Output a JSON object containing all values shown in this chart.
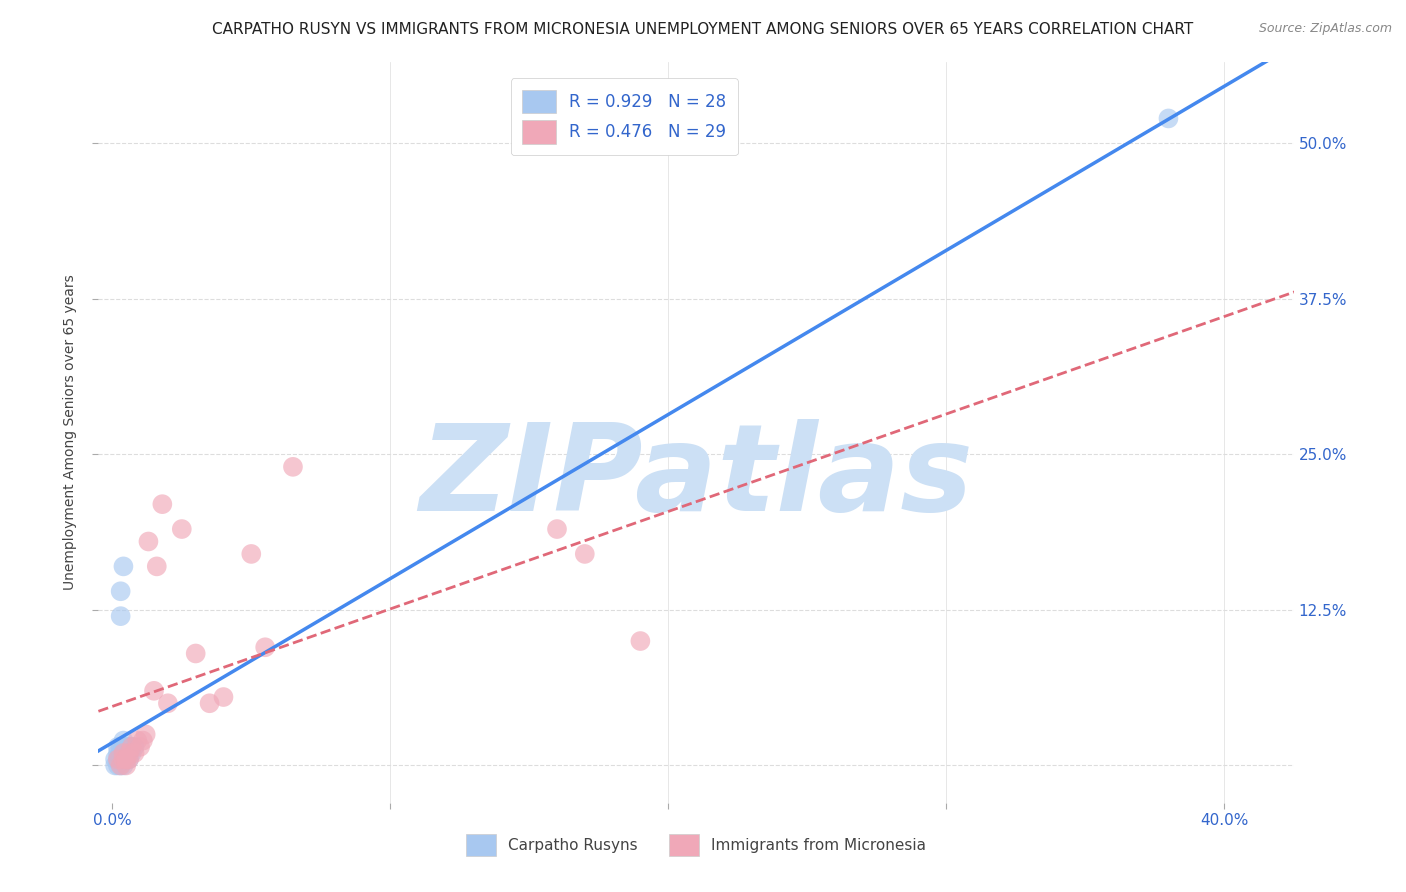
{
  "title": "CARPATHO RUSYN VS IMMIGRANTS FROM MICRONESIA UNEMPLOYMENT AMONG SENIORS OVER 65 YEARS CORRELATION CHART",
  "source": "Source: ZipAtlas.com",
  "ylabel": "Unemployment Among Seniors over 65 years",
  "xlim": [
    -0.005,
    0.425
  ],
  "ylim": [
    -0.03,
    0.565
  ],
  "xticks": [
    0.0,
    0.1,
    0.2,
    0.3,
    0.4
  ],
  "xticklabels": [
    "0.0%",
    "",
    "",
    "",
    "40.0%"
  ],
  "yticks": [
    0.0,
    0.125,
    0.25,
    0.375,
    0.5
  ],
  "yticklabels": [
    "",
    "12.5%",
    "25.0%",
    "37.5%",
    "50.0%"
  ],
  "bg_color": "#ffffff",
  "grid_color": "#dddddd",
  "watermark": "ZIPatlas",
  "wm_color": "#cce0f5",
  "series1_name": "Carpatho Rusyns",
  "series1_R": "0.929",
  "series1_N": "28",
  "series1_color": "#a8c8f0",
  "series1_line_color": "#4488ee",
  "series1_x": [
    0.001,
    0.001,
    0.002,
    0.002,
    0.002,
    0.002,
    0.003,
    0.003,
    0.003,
    0.003,
    0.003,
    0.003,
    0.004,
    0.004,
    0.004,
    0.004,
    0.004,
    0.004,
    0.005,
    0.005,
    0.005,
    0.006,
    0.006,
    0.006,
    0.007,
    0.007,
    0.008,
    0.38
  ],
  "series1_y": [
    0.0,
    0.005,
    0.0,
    0.005,
    0.01,
    0.015,
    0.0,
    0.005,
    0.01,
    0.015,
    0.12,
    0.14,
    0.0,
    0.005,
    0.01,
    0.015,
    0.02,
    0.16,
    0.005,
    0.01,
    0.015,
    0.005,
    0.01,
    0.015,
    0.01,
    0.015,
    0.015,
    0.52
  ],
  "series2_name": "Immigrants from Micronesia",
  "series2_R": "0.476",
  "series2_N": "29",
  "series2_color": "#f0a8b8",
  "series2_line_color": "#e06878",
  "series2_x": [
    0.002,
    0.003,
    0.004,
    0.004,
    0.005,
    0.005,
    0.006,
    0.006,
    0.007,
    0.008,
    0.009,
    0.01,
    0.011,
    0.012,
    0.013,
    0.015,
    0.016,
    0.018,
    0.02,
    0.025,
    0.03,
    0.035,
    0.04,
    0.05,
    0.055,
    0.065,
    0.16,
    0.17,
    0.19
  ],
  "series2_y": [
    0.005,
    0.0,
    0.005,
    0.01,
    0.0,
    0.005,
    0.005,
    0.01,
    0.015,
    0.01,
    0.02,
    0.015,
    0.02,
    0.025,
    0.18,
    0.06,
    0.16,
    0.21,
    0.05,
    0.19,
    0.09,
    0.05,
    0.055,
    0.17,
    0.095,
    0.24,
    0.19,
    0.17,
    0.1
  ],
  "legend_color": "#3366cc",
  "title_fontsize": 11,
  "tick_fontsize": 11,
  "source_fontsize": 9
}
